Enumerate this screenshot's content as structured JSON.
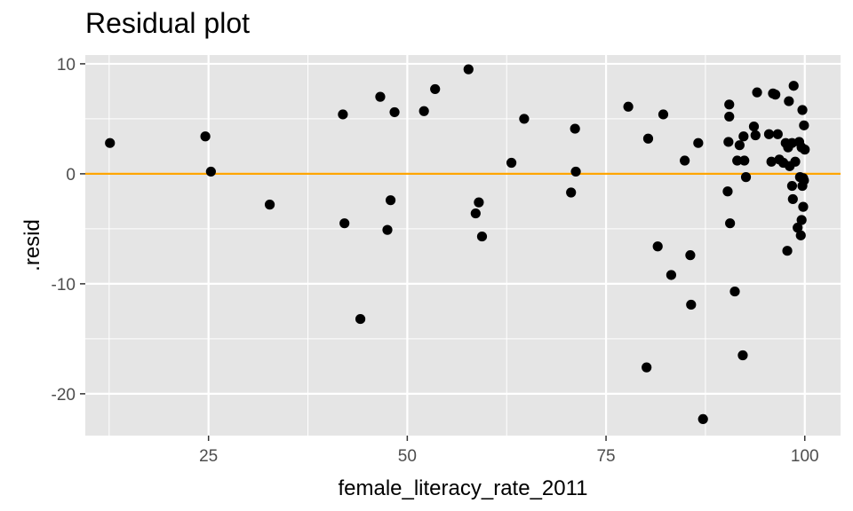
{
  "chart_data": {
    "type": "scatter",
    "title": "Residual plot",
    "xlabel": "female_literacy_rate_2011",
    "ylabel": ".resid",
    "xlim": [
      9.5,
      104.5
    ],
    "ylim": [
      -23.8,
      10.8
    ],
    "x_ticks": [
      25,
      50,
      75,
      100
    ],
    "x_tick_labels": [
      "25",
      "50",
      "75",
      "100"
    ],
    "y_ticks": [
      -20,
      -10,
      0,
      10
    ],
    "y_tick_labels": [
      "-20",
      "-10",
      "0",
      "10"
    ],
    "reference_line_y": 0,
    "grid": true,
    "colors": {
      "panel": "#e5e5e5",
      "grid": "#ffffff",
      "points": "#000000",
      "reference_line": "#ffa500",
      "tick_text": "#4d4d4d"
    },
    "points": [
      {
        "x": 12.6,
        "y": 2.8
      },
      {
        "x": 24.6,
        "y": 3.4
      },
      {
        "x": 25.3,
        "y": 0.2
      },
      {
        "x": 32.7,
        "y": -2.8
      },
      {
        "x": 41.9,
        "y": 5.4
      },
      {
        "x": 42.1,
        "y": -4.5
      },
      {
        "x": 44.1,
        "y": -13.2
      },
      {
        "x": 46.6,
        "y": 7.0
      },
      {
        "x": 47.5,
        "y": -5.1
      },
      {
        "x": 47.9,
        "y": -2.4
      },
      {
        "x": 48.4,
        "y": 5.6
      },
      {
        "x": 52.1,
        "y": 5.7
      },
      {
        "x": 53.5,
        "y": 7.7
      },
      {
        "x": 57.7,
        "y": 9.5
      },
      {
        "x": 58.6,
        "y": -3.6
      },
      {
        "x": 59.0,
        "y": -2.6
      },
      {
        "x": 59.4,
        "y": -5.7
      },
      {
        "x": 63.1,
        "y": 1.0
      },
      {
        "x": 64.7,
        "y": 5.0
      },
      {
        "x": 70.6,
        "y": -1.7
      },
      {
        "x": 71.1,
        "y": 4.1
      },
      {
        "x": 71.2,
        "y": 0.2
      },
      {
        "x": 77.8,
        "y": 6.1
      },
      {
        "x": 80.1,
        "y": -17.6
      },
      {
        "x": 80.3,
        "y": 3.2
      },
      {
        "x": 81.5,
        "y": -6.6
      },
      {
        "x": 82.2,
        "y": 5.4
      },
      {
        "x": 83.2,
        "y": -9.2
      },
      {
        "x": 84.9,
        "y": 1.2
      },
      {
        "x": 85.6,
        "y": -7.4
      },
      {
        "x": 85.7,
        "y": -11.9
      },
      {
        "x": 86.6,
        "y": 2.8
      },
      {
        "x": 87.2,
        "y": -22.3
      },
      {
        "x": 90.3,
        "y": -1.6
      },
      {
        "x": 90.4,
        "y": 2.9
      },
      {
        "x": 90.5,
        "y": 5.2
      },
      {
        "x": 90.5,
        "y": 6.3
      },
      {
        "x": 90.6,
        "y": -4.5
      },
      {
        "x": 91.2,
        "y": -10.7
      },
      {
        "x": 91.5,
        "y": 1.2
      },
      {
        "x": 91.8,
        "y": 2.6
      },
      {
        "x": 92.2,
        "y": -16.5
      },
      {
        "x": 92.3,
        "y": 3.4
      },
      {
        "x": 92.4,
        "y": 1.2
      },
      {
        "x": 92.6,
        "y": -0.3
      },
      {
        "x": 93.6,
        "y": 4.3
      },
      {
        "x": 93.8,
        "y": 3.5
      },
      {
        "x": 94.0,
        "y": 7.4
      },
      {
        "x": 95.5,
        "y": 3.6
      },
      {
        "x": 95.8,
        "y": 1.1
      },
      {
        "x": 96.0,
        "y": 7.3
      },
      {
        "x": 96.3,
        "y": 7.2
      },
      {
        "x": 96.6,
        "y": 3.6
      },
      {
        "x": 96.8,
        "y": 1.3
      },
      {
        "x": 97.3,
        "y": 1.0
      },
      {
        "x": 97.6,
        "y": 2.8
      },
      {
        "x": 97.8,
        "y": -7.0
      },
      {
        "x": 97.9,
        "y": 2.4
      },
      {
        "x": 98.0,
        "y": 6.6
      },
      {
        "x": 98.1,
        "y": 0.7
      },
      {
        "x": 98.4,
        "y": -1.1
      },
      {
        "x": 98.4,
        "y": 2.8
      },
      {
        "x": 98.5,
        "y": -2.3
      },
      {
        "x": 98.6,
        "y": 8.0
      },
      {
        "x": 98.8,
        "y": 1.1
      },
      {
        "x": 99.1,
        "y": -4.9
      },
      {
        "x": 99.3,
        "y": 2.9
      },
      {
        "x": 99.4,
        "y": -0.3
      },
      {
        "x": 99.5,
        "y": -5.6
      },
      {
        "x": 99.6,
        "y": -4.2
      },
      {
        "x": 99.6,
        "y": 2.4
      },
      {
        "x": 99.7,
        "y": 5.8
      },
      {
        "x": 99.7,
        "y": -1.1
      },
      {
        "x": 99.8,
        "y": -3.0
      },
      {
        "x": 99.8,
        "y": -0.4
      },
      {
        "x": 99.9,
        "y": 4.4
      },
      {
        "x": 100.0,
        "y": 2.2
      },
      {
        "x": 99.9,
        "y": -0.6
      }
    ]
  }
}
